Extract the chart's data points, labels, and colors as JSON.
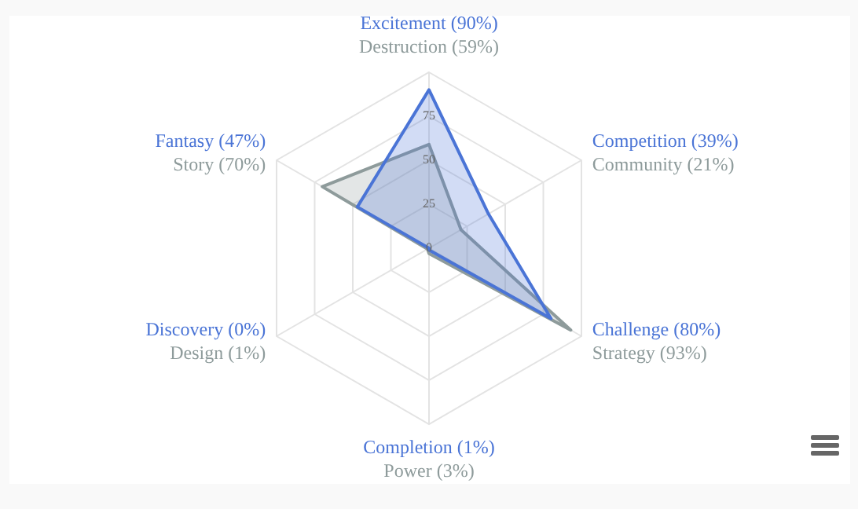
{
  "chart_data": {
    "type": "radar",
    "categories": [
      "Excitement (90%)",
      "Competition (39%)",
      "Challenge (80%)",
      "Completion (1%)",
      "Discovery (0%)",
      "Fantasy (47%)"
    ],
    "annotations": [
      "Destruction (59%)",
      "Community (21%)",
      "Strategy (93%)",
      "Power (3%)",
      "Design (1%)",
      "Story (70%)"
    ],
    "series": [
      {
        "color": "#4a74d6",
        "values": [
          90,
          39,
          80,
          1,
          0,
          47
        ]
      },
      {
        "color": "#8e9b9b",
        "values": [
          59,
          21,
          93,
          3,
          1,
          70
        ]
      }
    ],
    "ylim": [
      0,
      100
    ],
    "yticks": [
      0,
      25,
      50,
      75
    ],
    "grid": true,
    "legend": false
  }
}
